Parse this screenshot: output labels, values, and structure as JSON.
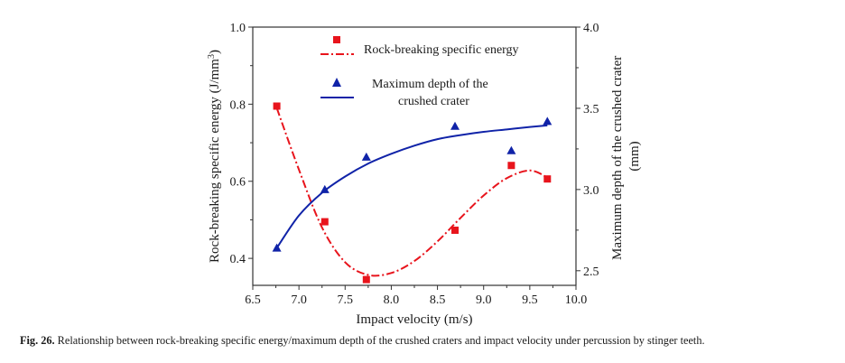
{
  "chart_data": {
    "type": "scatter",
    "x_axis": {
      "label": "Impact velocity (m/s)",
      "range": [
        6.5,
        10.0
      ],
      "ticks": [
        "6.5",
        "7.0",
        "7.5",
        "8.0",
        "8.5",
        "9.0",
        "9.5",
        "10.0"
      ]
    },
    "y_left": {
      "label_prefix": "Rock-breaking specific energy (J/mm",
      "label_sup": "3",
      "label_suffix": ")",
      "range": [
        0.33,
        1.0
      ],
      "ticks": [
        "0.4",
        "0.6",
        "0.8",
        "1.0"
      ]
    },
    "y_right": {
      "label_line1": "Maximum depth of the crushed crater",
      "label_line2": "(mm)",
      "range": [
        2.41,
        4.0
      ],
      "ticks": [
        "2.5",
        "3.0",
        "3.5",
        "4.0"
      ]
    },
    "series": [
      {
        "name": "Rock-breaking specific energy",
        "axis": "left",
        "marker": "square",
        "color": "#e8141c",
        "line_style": "dash-dot",
        "points": [
          [
            6.76,
            0.795
          ],
          [
            7.28,
            0.495
          ],
          [
            7.73,
            0.345
          ],
          [
            8.69,
            0.473
          ],
          [
            9.3,
            0.641
          ],
          [
            9.69,
            0.606
          ]
        ],
        "fit_curve": [
          [
            6.76,
            0.79
          ],
          [
            7.0,
            0.63
          ],
          [
            7.25,
            0.48
          ],
          [
            7.5,
            0.39
          ],
          [
            7.75,
            0.357
          ],
          [
            8.0,
            0.362
          ],
          [
            8.25,
            0.393
          ],
          [
            8.5,
            0.444
          ],
          [
            8.75,
            0.505
          ],
          [
            9.0,
            0.563
          ],
          [
            9.25,
            0.608
          ],
          [
            9.5,
            0.628
          ],
          [
            9.69,
            0.61
          ]
        ]
      },
      {
        "name_line1": "Maximum  depth of the",
        "name_line2": "crushed crater",
        "axis": "right",
        "marker": "triangle",
        "color": "#1023a8",
        "line_style": "solid",
        "points": [
          [
            6.76,
            2.64
          ],
          [
            7.28,
            3.0
          ],
          [
            7.73,
            3.2
          ],
          [
            8.69,
            3.39
          ],
          [
            9.3,
            3.24
          ],
          [
            9.69,
            3.42
          ]
        ],
        "fit_curve": [
          [
            6.76,
            2.64
          ],
          [
            7.0,
            2.84
          ],
          [
            7.25,
            2.98
          ],
          [
            7.5,
            3.08
          ],
          [
            7.75,
            3.16
          ],
          [
            8.0,
            3.22
          ],
          [
            8.25,
            3.27
          ],
          [
            8.5,
            3.31
          ],
          [
            8.75,
            3.335
          ],
          [
            9.0,
            3.355
          ],
          [
            9.25,
            3.37
          ],
          [
            9.5,
            3.385
          ],
          [
            9.69,
            3.395
          ]
        ]
      }
    ]
  },
  "caption": {
    "label": "Fig. 26.",
    "text": " Relationship between rock-breaking specific energy/maximum depth of the crushed craters and impact velocity under percussion by stinger teeth."
  }
}
